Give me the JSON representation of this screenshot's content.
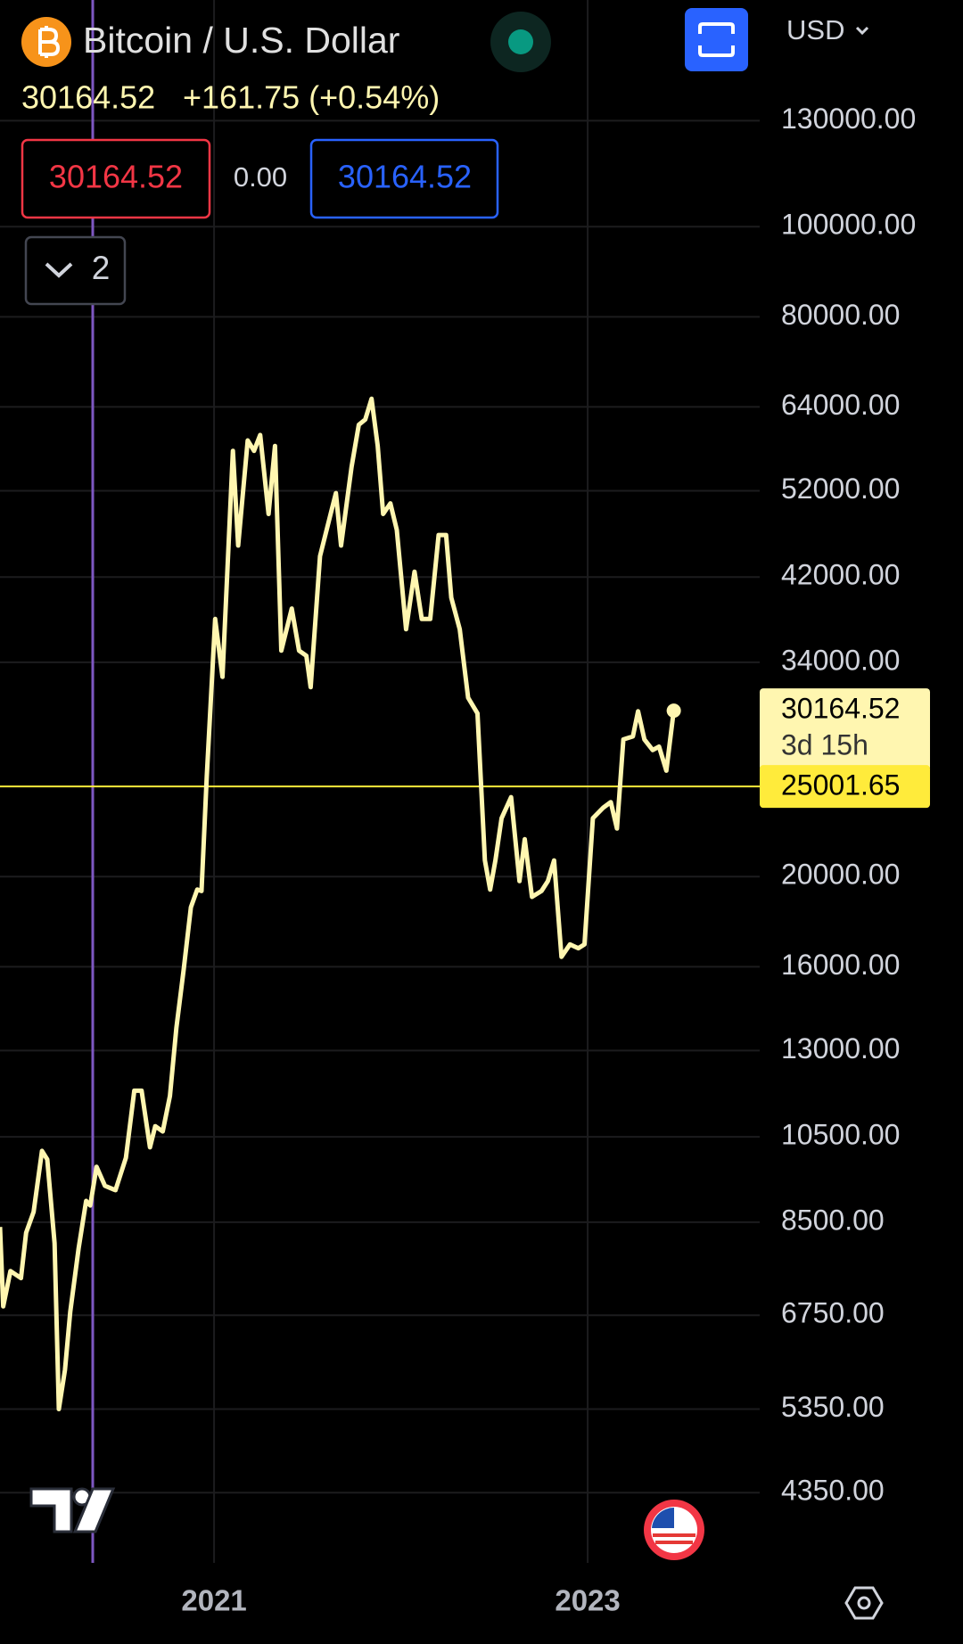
{
  "header": {
    "symbol": "Bitcoin / U.S. Dollar",
    "price": "30164.52",
    "change": "+161.75 (+0.54%)",
    "sell": "30164.52",
    "spread": "0.00",
    "buy": "30164.52",
    "indicators": "2",
    "currency": "USD"
  },
  "chart_data": {
    "type": "line",
    "color": "#fff6b0",
    "log_scale": true,
    "grid": true,
    "x": [
      2019.854,
      2019.871,
      2019.91,
      2019.966,
      2019.994,
      2020.034,
      2020.079,
      2020.107,
      2020.146,
      2020.169,
      2020.202,
      2020.23,
      2020.275,
      2020.315,
      2020.337,
      2020.371,
      2020.416,
      2020.472,
      2020.528,
      2020.573,
      2020.612,
      2020.657,
      2020.685,
      2020.725,
      2020.764,
      2020.798,
      2020.837,
      2020.876,
      2020.91,
      2020.933,
      2020.961,
      2021.006,
      2021.045,
      2021.101,
      2021.129,
      2021.18,
      2021.214,
      2021.247,
      2021.292,
      2021.326,
      2021.36,
      2021.416,
      2021.455,
      2021.494,
      2021.517,
      2021.567,
      2021.624,
      2021.652,
      2021.68,
      2021.736,
      2021.775,
      2021.809,
      2021.843,
      2021.876,
      2021.905,
      2021.944,
      2021.978,
      2022.028,
      2022.073,
      2022.112,
      2022.157,
      2022.202,
      2022.242,
      2022.27,
      2022.315,
      2022.36,
      2022.41,
      2022.45,
      2022.478,
      2022.506,
      2022.539,
      2022.59,
      2022.635,
      2022.663,
      2022.702,
      2022.753,
      2022.787,
      2022.82,
      2022.86,
      2022.905,
      2022.95,
      2022.983,
      2023.028,
      2023.084,
      2023.124,
      2023.157,
      2023.191,
      2023.242,
      2023.27,
      2023.304,
      2023.348,
      2023.382,
      2023.421,
      2023.461
    ],
    "values": [
      8400,
      6900,
      7530,
      7400,
      8280,
      8720,
      10140,
      9930,
      8070,
      5350,
      5900,
      6810,
      7970,
      8960,
      8860,
      9750,
      9300,
      9200,
      9970,
      11770,
      11770,
      10230,
      10780,
      10640,
      11620,
      13750,
      15860,
      18540,
      19370,
      19300,
      25650,
      37850,
      32800,
      57400,
      45400,
      58900,
      57400,
      59700,
      49100,
      58100,
      35000,
      38840,
      35000,
      34550,
      31970,
      44230,
      49100,
      51700,
      45400,
      55180,
      61240,
      62020,
      65300,
      58100,
      49100,
      50400,
      47200,
      36900,
      42550,
      37850,
      37850,
      46600,
      46600,
      39900,
      36900,
      31150,
      29960,
      20820,
      19370,
      20820,
      23110,
      24350,
      19780,
      21940,
      19020,
      19300,
      19780,
      20820,
      16400,
      16910,
      16750,
      16910,
      23110,
      23730,
      24050,
      22530,
      28090,
      28300,
      30120,
      28090,
      27360,
      27600,
      26000,
      30164.52
    ],
    "xlim": [
      2019.854,
      2023.921
    ],
    "xticks": [
      2021,
      2023
    ],
    "ylim": [
      3656,
      175300
    ],
    "yticks": [
      {
        "value": 130000,
        "label": "130000.00"
      },
      {
        "value": 100000,
        "label": "100000.00"
      },
      {
        "value": 80000,
        "label": "80000.00"
      },
      {
        "value": 64000,
        "label": "64000.00"
      },
      {
        "value": 52000,
        "label": "52000.00"
      },
      {
        "value": 42000,
        "label": "42000.00"
      },
      {
        "value": 34000,
        "label": "34000.00"
      },
      {
        "value": 20000,
        "label": "20000.00"
      },
      {
        "value": 16000,
        "label": "16000.00"
      },
      {
        "value": 13000,
        "label": "13000.00"
      },
      {
        "value": 10500,
        "label": "10500.00"
      },
      {
        "value": 8500,
        "label": "8500.00"
      },
      {
        "value": 6750,
        "label": "6750.00"
      },
      {
        "value": 5350,
        "label": "5350.00"
      },
      {
        "value": 4350,
        "label": "4350.00"
      }
    ],
    "hline": {
      "value": 25001.65,
      "color": "#ffeb3b"
    },
    "last_label": {
      "value": 30164.52,
      "countdown": "3d 15h"
    }
  }
}
